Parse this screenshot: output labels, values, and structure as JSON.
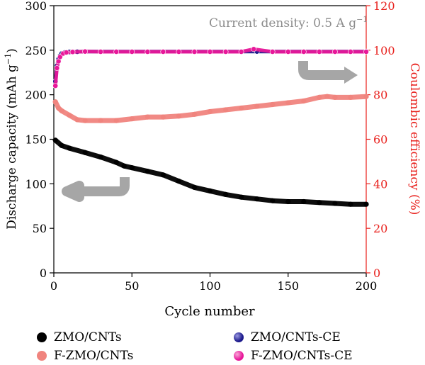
{
  "chart_data": {
    "type": "scatter",
    "annotation": {
      "text": "Current density: 0.5 A g",
      "superscript": "−1"
    },
    "xlabel": "Cycle number",
    "ylabel_left": {
      "text": "Discharge capacity (mAh g",
      "superscript": "−1",
      "suffix": ")"
    },
    "ylabel_right": "Coulombic efficiency (%)",
    "xlim": [
      0,
      200
    ],
    "ylim_left": [
      0,
      300
    ],
    "ylim_right": [
      0,
      120
    ],
    "xticks": [
      "0",
      "50",
      "100",
      "150",
      "200"
    ],
    "yticks_left": [
      "0",
      "50",
      "100",
      "150",
      "200",
      "250",
      "300"
    ],
    "yticks_right": [
      "0",
      "20",
      "40",
      "60",
      "80",
      "100",
      "120"
    ],
    "grid": false,
    "legend_position": "bottom",
    "colors": {
      "right_axis": "#e8201c",
      "arrow": "#a6a6a6"
    },
    "series": [
      {
        "name": "ZMO/CNTs",
        "axis": "left",
        "color": "#000000",
        "x": [
          1,
          5,
          10,
          20,
          30,
          40,
          45,
          50,
          60,
          70,
          80,
          90,
          100,
          110,
          120,
          130,
          140,
          150,
          160,
          170,
          180,
          190,
          200
        ],
        "y": [
          149,
          143,
          140,
          135,
          130,
          124,
          120,
          118,
          114,
          110,
          103,
          96,
          92,
          88,
          85,
          83,
          81,
          80,
          80,
          79,
          78,
          77,
          77
        ]
      },
      {
        "name": "F-ZMO/CNTs",
        "axis": "left",
        "color": "#f0847e",
        "x": [
          1,
          3,
          5,
          10,
          15,
          20,
          30,
          40,
          50,
          60,
          70,
          80,
          90,
          100,
          110,
          120,
          130,
          140,
          150,
          160,
          170,
          175,
          180,
          190,
          200
        ],
        "y": [
          192,
          185,
          182,
          177,
          172,
          171,
          171,
          171,
          173,
          175,
          175,
          176,
          178,
          181,
          183,
          185,
          187,
          189,
          191,
          193,
          197,
          198,
          197,
          197,
          198
        ]
      },
      {
        "name": "ZMO/CNTs-CE",
        "axis": "right",
        "color": "#1c1a8c",
        "x": [
          1,
          2,
          3,
          4,
          5,
          7,
          10,
          15,
          20,
          30,
          40,
          50,
          60,
          70,
          80,
          90,
          100,
          110,
          120,
          130,
          140,
          150,
          160,
          170,
          180,
          190,
          200
        ],
        "y": [
          86,
          93,
          96,
          97.5,
          98.5,
          99,
          99.2,
          99.3,
          99.4,
          99.4,
          99.4,
          99.4,
          99.4,
          99.4,
          99.4,
          99.4,
          99.4,
          99.4,
          99.4,
          99.4,
          99.4,
          99.4,
          99.4,
          99.4,
          99.4,
          99.4,
          99.4
        ]
      },
      {
        "name": "F-ZMO/CNTs-CE",
        "axis": "right",
        "color": "#e8189a",
        "x": [
          1,
          2,
          3,
          4,
          6,
          8,
          12,
          20,
          30,
          40,
          50,
          60,
          70,
          80,
          90,
          100,
          110,
          120,
          128,
          140,
          150,
          160,
          170,
          180,
          190,
          200
        ],
        "y": [
          84,
          92,
          95,
          97,
          98.5,
          99,
          99.2,
          99.4,
          99.3,
          99.3,
          99.3,
          99.3,
          99.3,
          99.3,
          99.3,
          99.3,
          99.3,
          99.3,
          100.5,
          99.3,
          99.3,
          99.3,
          99.3,
          99.3,
          99.3,
          99.3
        ]
      }
    ]
  }
}
